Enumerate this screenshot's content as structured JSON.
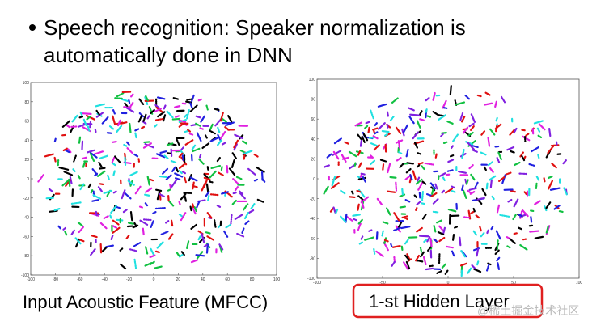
{
  "slide": {
    "bullet": [
      "Speech recognition: Speaker normalization is",
      "automatically done in DNN"
    ],
    "plots": [
      {
        "caption": "Input Acoustic Feature (MFCC)",
        "xticks": [
          -100,
          -80,
          -60,
          -40,
          -20,
          0,
          20,
          40,
          60,
          80,
          100
        ],
        "yticks": [
          -100,
          -80,
          -60,
          -40,
          -20,
          0,
          20,
          40,
          60,
          80,
          100
        ]
      },
      {
        "caption": "1-st Hidden Layer",
        "xticks": [
          -100,
          -50,
          0,
          50,
          100
        ],
        "yticks": [
          -100,
          -80,
          -60,
          -40,
          -20,
          0,
          20,
          40,
          60,
          80,
          100
        ]
      }
    ],
    "watermark": "@稀土掘金技术社区"
  }
}
